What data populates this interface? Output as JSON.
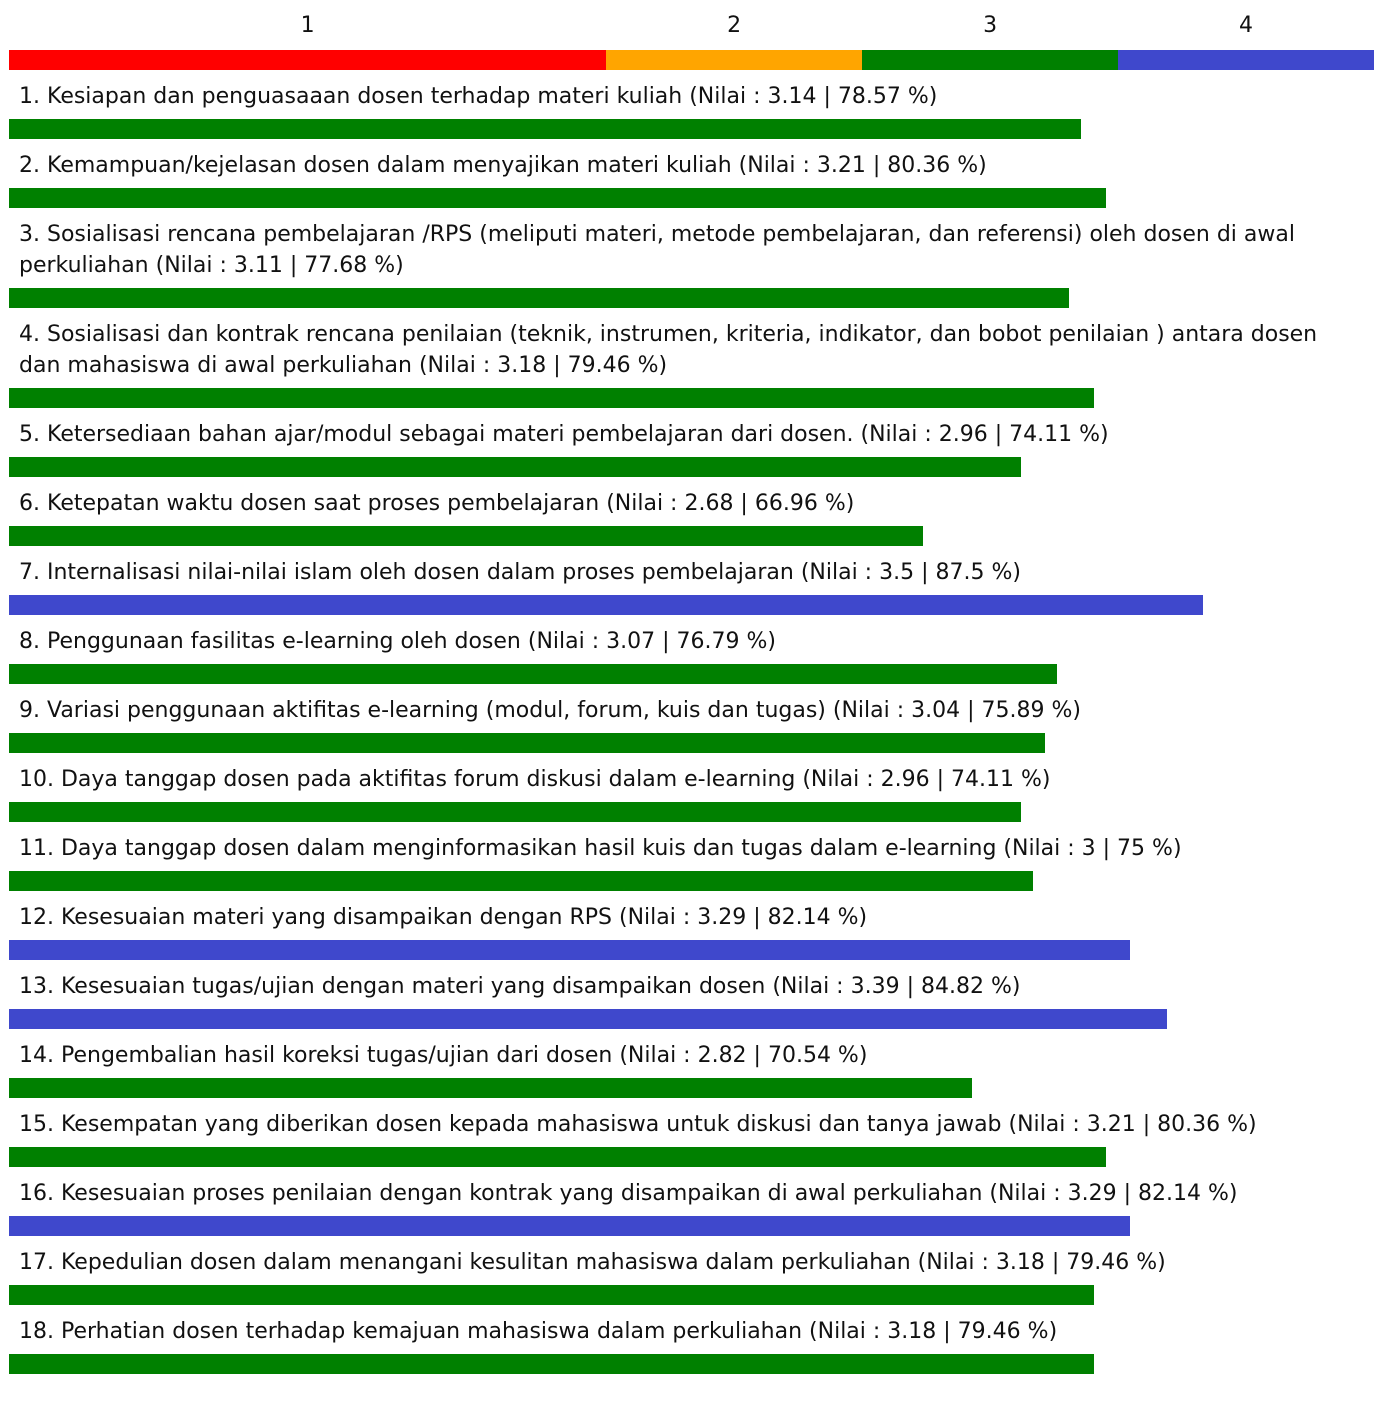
{
  "scale": [
    {
      "label": "1",
      "color": "#ff0000",
      "max": 43.75
    },
    {
      "label": "2",
      "color": "#ffa500",
      "max": 62.5
    },
    {
      "label": "3",
      "color": "#008000",
      "max": 81.25
    },
    {
      "label": "4",
      "color": "#3f48cc",
      "max": 100
    }
  ],
  "items": [
    {
      "label": "1. Kesiapan dan penguasaaan dosen terhadap materi kuliah (Nilai : 3.14 | 78.57 %)",
      "percent": 78.57
    },
    {
      "label": "2. Kemampuan/kejelasan dosen dalam menyajikan materi kuliah (Nilai : 3.21 | 80.36 %)",
      "percent": 80.36
    },
    {
      "label": "3. Sosialisasi rencana pembelajaran /RPS (meliputi materi, metode pembelajaran, dan referensi) oleh dosen di awal perkuliahan (Nilai : 3.11 | 77.68 %)",
      "percent": 77.68
    },
    {
      "label": "4. Sosialisasi dan kontrak rencana penilaian (teknik, instrumen, kriteria, indikator, dan bobot penilaian ) antara dosen dan mahasiswa di awal perkuliahan (Nilai : 3.18 | 79.46 %)",
      "percent": 79.46
    },
    {
      "label": "5. Ketersediaan bahan ajar/modul sebagai materi pembelajaran dari dosen. (Nilai : 2.96 | 74.11 %)",
      "percent": 74.11
    },
    {
      "label": "6. Ketepatan waktu dosen saat proses pembelajaran (Nilai : 2.68 | 66.96 %)",
      "percent": 66.96
    },
    {
      "label": "7. Internalisasi nilai-nilai islam oleh dosen dalam proses pembelajaran (Nilai : 3.5 | 87.5 %)",
      "percent": 87.5
    },
    {
      "label": "8. Penggunaan fasilitas e-learning oleh dosen (Nilai : 3.07 | 76.79 %)",
      "percent": 76.79
    },
    {
      "label": "9. Variasi penggunaan aktifitas e-learning (modul, forum, kuis dan tugas) (Nilai : 3.04 | 75.89 %)",
      "percent": 75.89
    },
    {
      "label": "10. Daya tanggap dosen pada aktifitas forum diskusi dalam e-learning (Nilai : 2.96 | 74.11 %)",
      "percent": 74.11
    },
    {
      "label": "11. Daya tanggap dosen dalam menginformasikan hasil kuis dan tugas dalam e-learning (Nilai : 3 | 75 %)",
      "percent": 75
    },
    {
      "label": "12. Kesesuaian materi yang disampaikan dengan RPS (Nilai : 3.29 | 82.14 %)",
      "percent": 82.14
    },
    {
      "label": "13. Kesesuaian tugas/ujian dengan materi yang disampaikan dosen (Nilai : 3.39 | 84.82 %)",
      "percent": 84.82
    },
    {
      "label": "14. Pengembalian hasil koreksi tugas/ujian dari dosen (Nilai : 2.82 | 70.54 %)",
      "percent": 70.54
    },
    {
      "label": "15. Kesempatan yang diberikan dosen kepada mahasiswa untuk diskusi dan tanya jawab (Nilai : 3.21 | 80.36 %)",
      "percent": 80.36
    },
    {
      "label": "16. Kesesuaian proses penilaian dengan kontrak yang disampaikan di awal perkuliahan (Nilai : 3.29 | 82.14 %)",
      "percent": 82.14
    },
    {
      "label": "17. Kepedulian dosen dalam menangani kesulitan mahasiswa dalam perkuliahan (Nilai : 3.18 | 79.46 %)",
      "percent": 79.46
    },
    {
      "label": "18. Perhatian dosen terhadap kemajuan mahasiswa dalam perkuliahan (Nilai : 3.18 | 79.46 %)",
      "percent": 79.46
    }
  ]
}
